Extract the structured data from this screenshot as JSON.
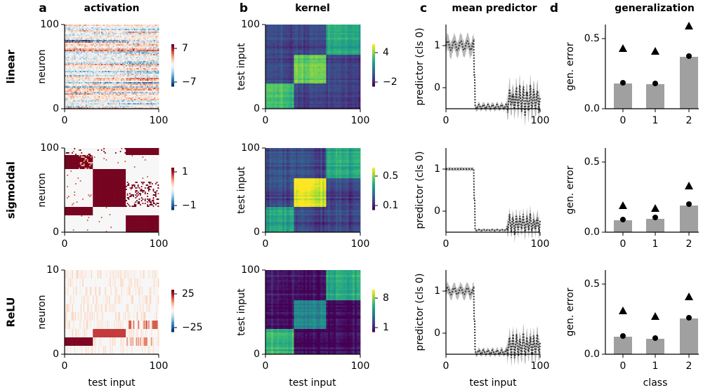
{
  "chart_data": {
    "type": "heatmap",
    "panel_letters": [
      "a",
      "b",
      "c",
      "d"
    ],
    "column_titles": [
      "activation",
      "kernel",
      "mean predictor",
      "generalization"
    ],
    "row_labels": [
      "linear",
      "sigmoidal",
      "ReLU"
    ],
    "activation": {
      "xlabel": "test input",
      "ylabel": "neuron",
      "xticks": [
        "0",
        "100"
      ],
      "colormap": "RdBu_r",
      "rows": [
        {
          "yticks": [
            "0",
            "100"
          ],
          "ymax": 100,
          "colorbar_ticks": [
            "7",
            "−7"
          ],
          "clim": [
            -7,
            7
          ]
        },
        {
          "yticks": [
            "0",
            "100"
          ],
          "ymax": 100,
          "colorbar_ticks": [
            "1",
            "−1"
          ],
          "clim": [
            -1,
            1
          ]
        },
        {
          "yticks": [
            "0",
            "10"
          ],
          "ymax": 10,
          "colorbar_ticks": [
            "25",
            "−25"
          ],
          "clim": [
            -25,
            25
          ]
        }
      ]
    },
    "kernel": {
      "xlabel": "test input",
      "ylabel": "test input",
      "xticks": [
        "0",
        "100"
      ],
      "yticks": [
        "0",
        "100"
      ],
      "colormap": "viridis",
      "class_blocks": [
        [
          0,
          30
        ],
        [
          30,
          65
        ],
        [
          65,
          100
        ]
      ],
      "rows": [
        {
          "colorbar_ticks": [
            "4",
            "−2"
          ],
          "clim": [
            -2.5,
            5
          ]
        },
        {
          "colorbar_ticks": [
            "0.5",
            "0.1"
          ],
          "clim": [
            0.05,
            0.6
          ]
        },
        {
          "colorbar_ticks": [
            "8",
            "1"
          ],
          "clim": [
            0,
            9
          ]
        }
      ]
    },
    "mean_predictor": {
      "xlabel": "test input",
      "ylabel": "predictor (cls 0)",
      "xticks": [
        "0",
        "100"
      ],
      "yticks": [
        "1",
        "0"
      ],
      "x_range": [
        0,
        100
      ],
      "y_range": [
        -0.5,
        1.5
      ]
    },
    "generalization": {
      "xlabel": "class",
      "ylabel": "gen. error",
      "categories": [
        "0",
        "1",
        "2"
      ],
      "yticks": [
        "0.0",
        "0.5"
      ],
      "ylim": [
        0,
        0.6
      ],
      "series_names": [
        "bar",
        "circle",
        "triangle"
      ],
      "rows": [
        {
          "bar": [
            0.18,
            0.175,
            0.37
          ],
          "circle": [
            0.185,
            0.18,
            0.375
          ],
          "triangle": [
            0.43,
            0.41,
            0.59
          ]
        },
        {
          "bar": [
            0.085,
            0.095,
            0.19
          ],
          "circle": [
            0.09,
            0.105,
            0.2
          ],
          "triangle": [
            0.19,
            0.17,
            0.33
          ]
        },
        {
          "bar": [
            0.125,
            0.11,
            0.255
          ],
          "circle": [
            0.13,
            0.115,
            0.26
          ],
          "triangle": [
            0.31,
            0.27,
            0.41
          ]
        }
      ]
    }
  }
}
